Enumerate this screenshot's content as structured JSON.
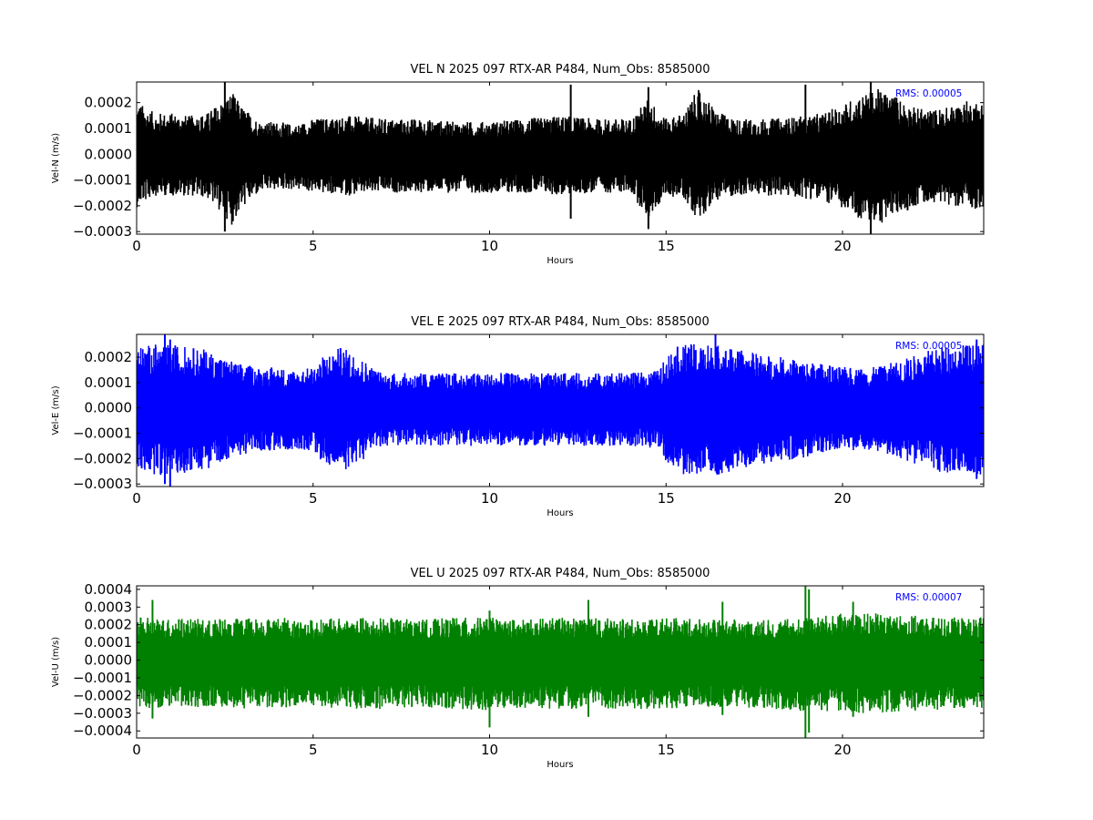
{
  "chart_data": [
    {
      "type": "line",
      "title": "VEL N 2025 097 RTX-AR  P484, Num_Obs: 8585000",
      "xlabel": "Hours",
      "ylabel": "Vel-N (m/s)",
      "color": "#000000",
      "rms_text": "RMS:  0.00005",
      "rms_color": "#0000ff",
      "xlim": [
        0,
        24
      ],
      "ylim": [
        -0.00031,
        0.00028
      ],
      "xticks": [
        0,
        5,
        10,
        15,
        20
      ],
      "xtick_labels": [
        "0",
        "5",
        "10",
        "15",
        "20"
      ],
      "yticks": [
        -0.0003,
        -0.0002,
        -0.0001,
        0.0,
        0.0001,
        0.0002
      ],
      "ytick_labels": [
        "−0.0003",
        "−0.0002",
        "−0.0001",
        "0.0000",
        "0.0001",
        "0.0002"
      ],
      "envelope": {
        "x": [
          0,
          0.5,
          1,
          1.5,
          2,
          2.5,
          2.7,
          3,
          3.5,
          4,
          4.5,
          5,
          6,
          7,
          8,
          9,
          10,
          11,
          12,
          13,
          14,
          14.5,
          15,
          15.5,
          15.9,
          16.5,
          17,
          18,
          19,
          19.5,
          20,
          20.5,
          21,
          21.5,
          22,
          22.5,
          23,
          23.5,
          24
        ],
        "upper": [
          0.00018,
          0.00014,
          0.00014,
          0.00013,
          0.00014,
          0.00019,
          0.00021,
          0.00016,
          0.00011,
          0.00011,
          0.0001,
          0.00012,
          0.00013,
          0.00012,
          0.00012,
          0.00011,
          0.00011,
          0.00012,
          0.00013,
          0.00012,
          0.00012,
          0.00019,
          0.00012,
          0.00014,
          0.00022,
          0.00014,
          0.00012,
          0.00012,
          0.00013,
          0.00014,
          0.00017,
          0.0002,
          0.00022,
          0.0002,
          0.00016,
          0.00015,
          0.00016,
          0.00018,
          0.00018
        ],
        "lower": [
          -0.00018,
          -0.00014,
          -0.00014,
          -0.00014,
          -0.00015,
          -0.00021,
          -0.00024,
          -0.00018,
          -0.00013,
          -0.00012,
          -0.00012,
          -0.00013,
          -0.00014,
          -0.00013,
          -0.00013,
          -0.00013,
          -0.00013,
          -0.00013,
          -0.00014,
          -0.00013,
          -0.00013,
          -0.00022,
          -0.00014,
          -0.00015,
          -0.00022,
          -0.00015,
          -0.00014,
          -0.00014,
          -0.00015,
          -0.00016,
          -0.00019,
          -0.00022,
          -0.00024,
          -0.00021,
          -0.00018,
          -0.00016,
          -0.00017,
          -0.00018,
          -0.00019
        ]
      },
      "spikes": [
        {
          "x": 2.5,
          "y1": -0.0003,
          "y2": 0.00028
        },
        {
          "x": 12.3,
          "y1": -0.00025,
          "y2": 0.00027
        },
        {
          "x": 14.5,
          "y1": -0.00029,
          "y2": 0.00026
        },
        {
          "x": 18.95,
          "y1": -0.00012,
          "y2": 0.00027
        },
        {
          "x": 20.8,
          "y1": -0.00031,
          "y2": 0.00028
        }
      ]
    },
    {
      "type": "line",
      "title": "VEL E 2025 097 RTX-AR  P484, Num_Obs: 8585000",
      "xlabel": "Hours",
      "ylabel": "Vel-E (m/s)",
      "color": "#0000ff",
      "rms_text": "RMS:  0.00005",
      "rms_color": "#0000ff",
      "xlim": [
        0,
        24
      ],
      "ylim": [
        -0.00031,
        0.00029
      ],
      "xticks": [
        0,
        5,
        10,
        15,
        20
      ],
      "xtick_labels": [
        "0",
        "5",
        "10",
        "15",
        "20"
      ],
      "yticks": [
        -0.0003,
        -0.0002,
        -0.0001,
        0.0,
        0.0001,
        0.0002
      ],
      "ytick_labels": [
        "−0.0003",
        "−0.0002",
        "−0.0001",
        "0.0000",
        "0.0001",
        "0.0002"
      ],
      "envelope": {
        "x": [
          0,
          0.5,
          1,
          1.5,
          2,
          2.5,
          3,
          3.5,
          4,
          4.5,
          5,
          5.3,
          5.8,
          6.3,
          6.7,
          7,
          8,
          9,
          10,
          11,
          12,
          13,
          14,
          14.8,
          15.1,
          15.5,
          16,
          16.5,
          17,
          18,
          19,
          20,
          20.5,
          21,
          21.5,
          22,
          22.5,
          23,
          23.5,
          24
        ],
        "upper": [
          0.00021,
          0.00022,
          0.00022,
          0.00021,
          0.0002,
          0.00017,
          0.00015,
          0.00014,
          0.00014,
          0.00013,
          0.00014,
          0.00018,
          0.00021,
          0.00018,
          0.00014,
          0.00012,
          0.00012,
          0.00012,
          0.00012,
          0.00012,
          0.00012,
          0.00012,
          0.00012,
          0.00013,
          0.0002,
          0.00022,
          0.00022,
          0.00022,
          0.0002,
          0.00018,
          0.00016,
          0.00014,
          0.00014,
          0.00014,
          0.00016,
          0.00018,
          0.0002,
          0.00022,
          0.00022,
          0.00022
        ],
        "lower": [
          -0.00022,
          -0.00023,
          -0.00023,
          -0.00022,
          -0.00021,
          -0.00018,
          -0.00016,
          -0.00015,
          -0.00015,
          -0.00014,
          -0.00015,
          -0.00019,
          -0.00022,
          -0.00019,
          -0.00015,
          -0.00013,
          -0.00013,
          -0.00013,
          -0.00013,
          -0.00013,
          -0.00013,
          -0.00013,
          -0.00013,
          -0.00014,
          -0.00021,
          -0.00023,
          -0.00023,
          -0.00023,
          -0.00021,
          -0.00019,
          -0.00017,
          -0.00015,
          -0.00015,
          -0.00015,
          -0.00017,
          -0.00019,
          -0.00021,
          -0.00023,
          -0.00023,
          -0.00023
        ]
      },
      "spikes": [
        {
          "x": 0.8,
          "y1": -0.0003,
          "y2": 0.00029
        },
        {
          "x": 0.95,
          "y1": -0.00031,
          "y2": 0.00027
        },
        {
          "x": 16.4,
          "y1": -0.00025,
          "y2": 0.00029
        },
        {
          "x": 23.8,
          "y1": -0.00028,
          "y2": 0.00027
        }
      ]
    },
    {
      "type": "line",
      "title": "VEL U 2025 097 RTX-AR  P484, Num_Obs: 8585000",
      "xlabel": "Hours",
      "ylabel": "Vel-U (m/s)",
      "color": "#008000",
      "rms_text": "RMS:  0.00007",
      "rms_color": "#0000ff",
      "xlim": [
        0,
        24
      ],
      "ylim": [
        -0.00044,
        0.00042
      ],
      "xticks": [
        0,
        5,
        10,
        15,
        20
      ],
      "xtick_labels": [
        "0",
        "5",
        "10",
        "15",
        "20"
      ],
      "yticks": [
        -0.0004,
        -0.0003,
        -0.0002,
        -0.0001,
        0.0,
        0.0001,
        0.0002,
        0.0003,
        0.0004
      ],
      "ytick_labels": [
        "−0.0004",
        "−0.0003",
        "−0.0002",
        "−0.0001",
        "0.0000",
        "0.0001",
        "0.0002",
        "0.0003",
        "0.0004"
      ],
      "envelope": {
        "x": [
          0,
          1,
          2,
          3,
          4,
          5,
          6,
          7,
          8,
          9,
          10,
          11,
          12,
          13,
          14,
          15,
          16,
          17,
          18,
          19,
          20,
          21,
          22,
          23,
          24
        ],
        "upper": [
          0.00021,
          0.00021,
          0.0002,
          0.00021,
          0.00021,
          0.0002,
          0.00021,
          0.00021,
          0.0002,
          0.00021,
          0.00021,
          0.0002,
          0.00021,
          0.00021,
          0.0002,
          0.00021,
          0.0002,
          0.0002,
          0.0002,
          0.00021,
          0.00023,
          0.00023,
          0.00022,
          0.00021,
          0.00021
        ],
        "lower": [
          -0.00024,
          -0.00024,
          -0.00023,
          -0.00024,
          -0.00024,
          -0.00023,
          -0.00024,
          -0.00024,
          -0.00023,
          -0.00024,
          -0.00025,
          -0.00024,
          -0.00024,
          -0.00024,
          -0.00024,
          -0.00024,
          -0.00023,
          -0.00023,
          -0.00024,
          -0.00026,
          -0.00026,
          -0.00026,
          -0.00025,
          -0.00024,
          -0.00024
        ]
      },
      "spikes": [
        {
          "x": 0.45,
          "y1": -0.00033,
          "y2": 0.00034
        },
        {
          "x": 10.0,
          "y1": -0.00038,
          "y2": 0.00028
        },
        {
          "x": 12.8,
          "y1": -0.00032,
          "y2": 0.00034
        },
        {
          "x": 16.6,
          "y1": -0.00031,
          "y2": 0.00033
        },
        {
          "x": 18.95,
          "y1": -0.00044,
          "y2": 0.00042
        },
        {
          "x": 19.05,
          "y1": -0.00041,
          "y2": 0.0004
        },
        {
          "x": 20.3,
          "y1": -0.00032,
          "y2": 0.00033
        }
      ]
    }
  ]
}
